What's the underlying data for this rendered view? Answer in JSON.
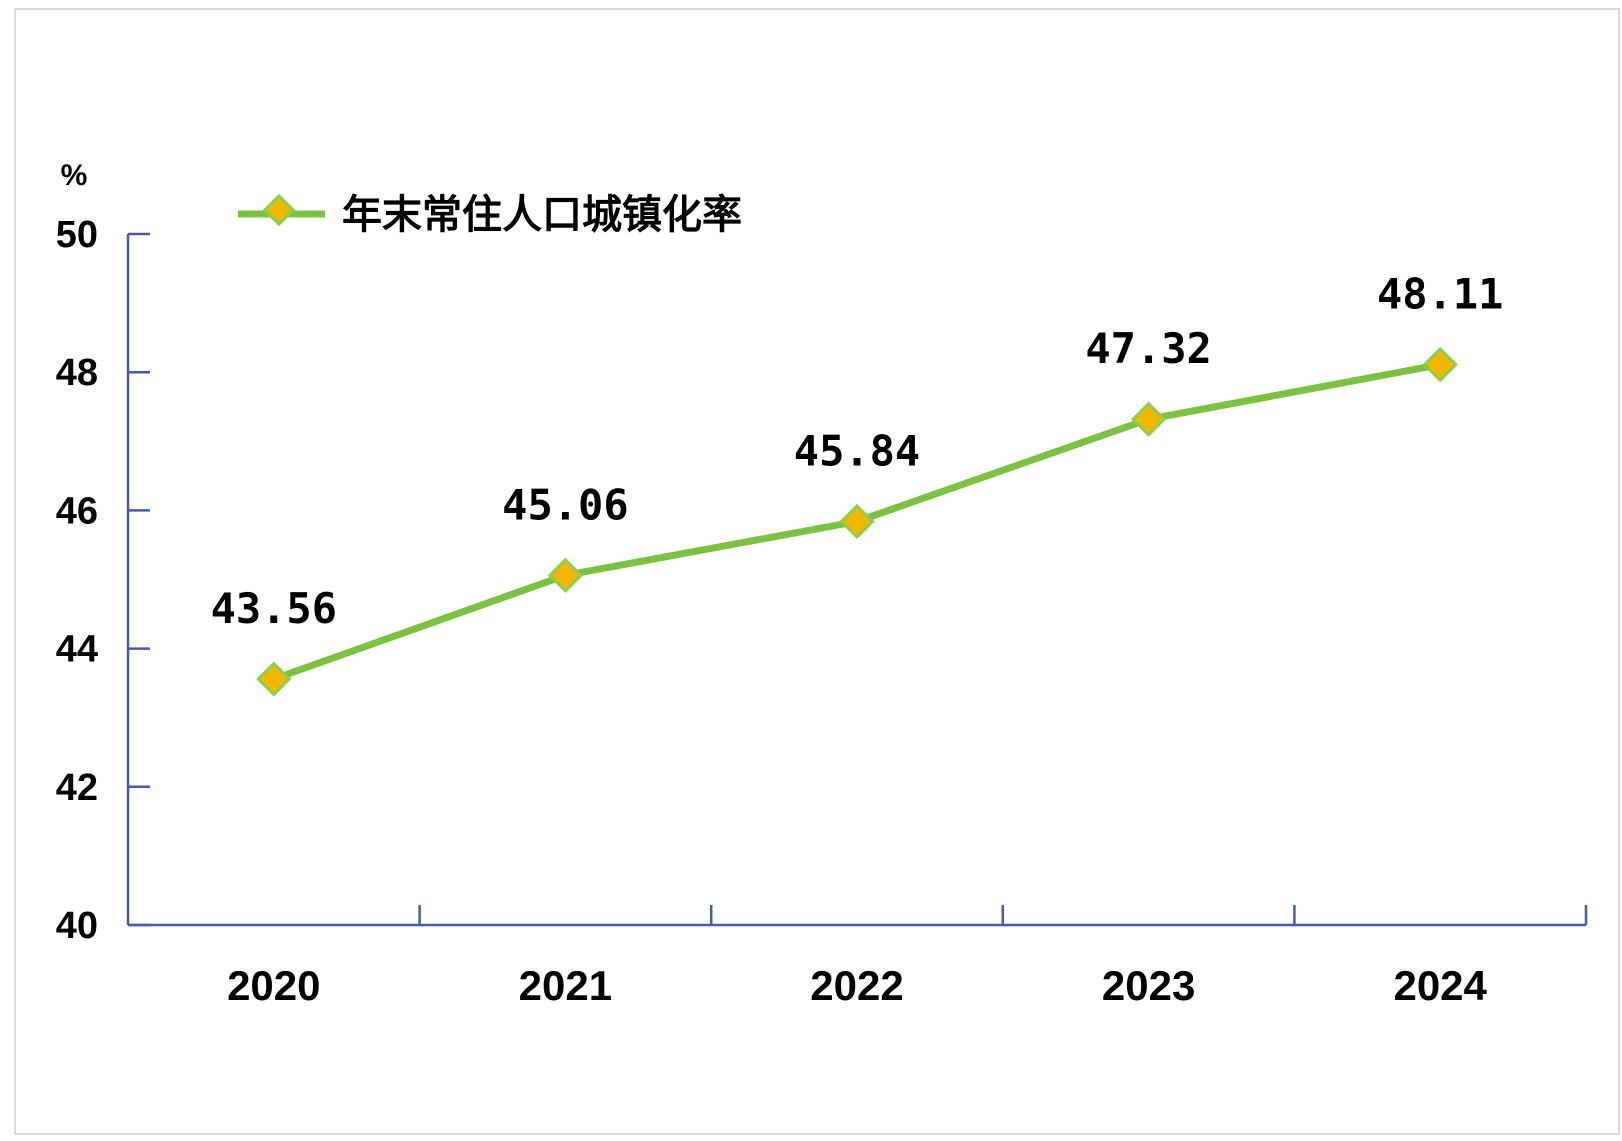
{
  "chart_data": {
    "type": "line",
    "categories": [
      "2020",
      "2021",
      "2022",
      "2023",
      "2024"
    ],
    "series": [
      {
        "name": "年末常住人口城镇化率",
        "values": [
          43.56,
          45.06,
          45.84,
          47.32,
          48.11
        ]
      }
    ],
    "data_labels": [
      "43.56",
      "45.06",
      "45.84",
      "47.32",
      "48.11"
    ],
    "yunit": "%",
    "ylim": [
      40,
      50
    ],
    "yticks": [
      "40",
      "42",
      "44",
      "46",
      "48",
      "50"
    ],
    "legend_position": "top-left",
    "grid": false,
    "colors": {
      "line": "#7dc142",
      "marker_fill": "#f5b800",
      "marker_stroke": "#8ccf4d",
      "axis": "#4a5aa8"
    }
  }
}
